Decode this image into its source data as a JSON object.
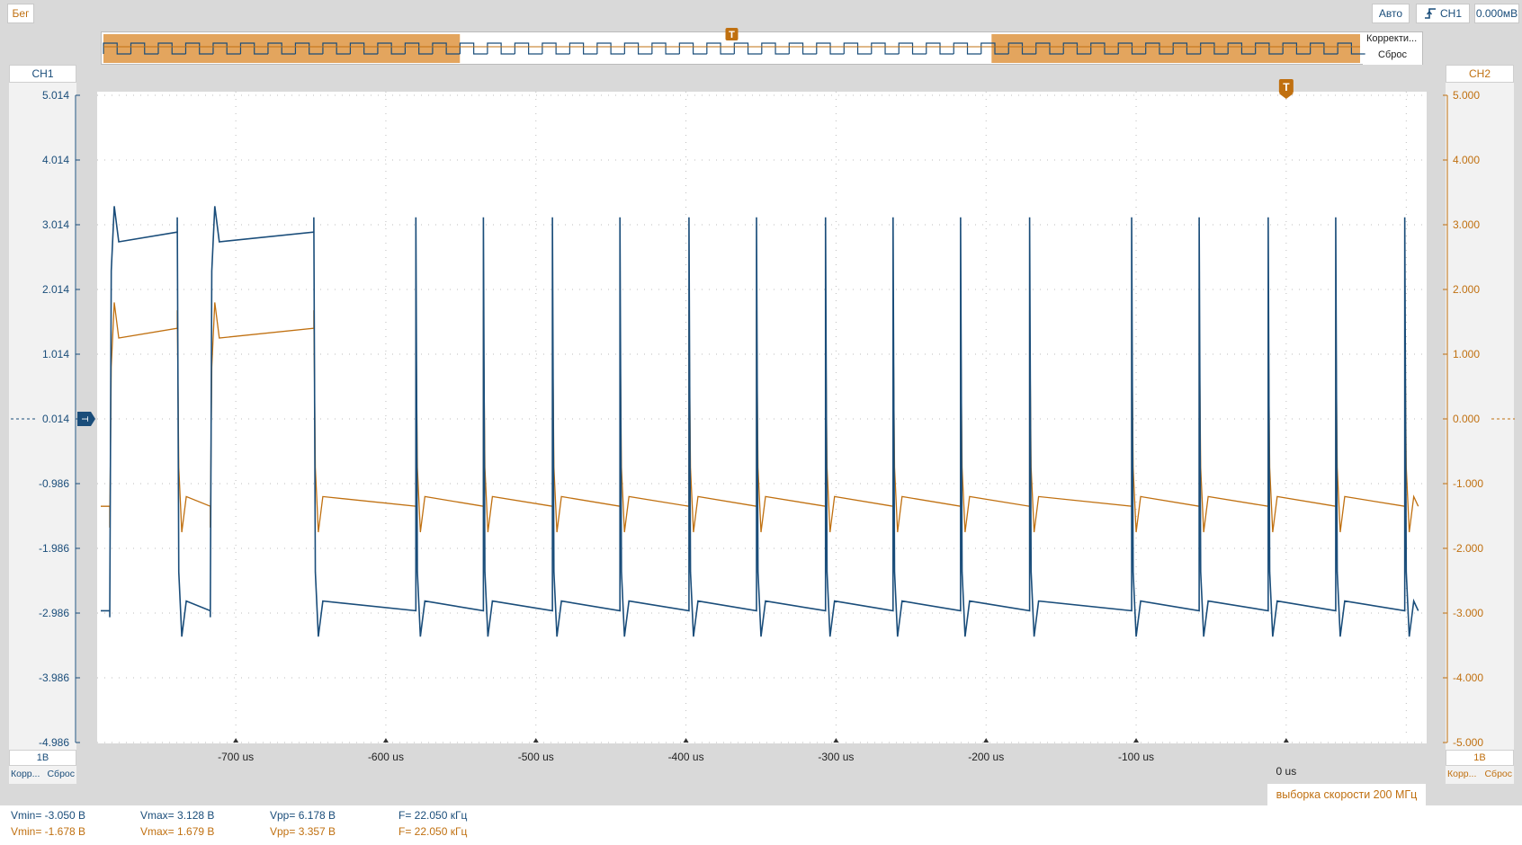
{
  "toolbar": {
    "run_label": "Бег",
    "auto_label": "Авто",
    "trigger_source_label": "CH1",
    "trigger_level_label": "0.000мВ"
  },
  "overview": {
    "correct_label": "Корректи...",
    "reset_label": "Сброс",
    "trigger_marker": "T"
  },
  "ch1_panel": {
    "title": "CH1",
    "scale": "1В",
    "correct_label": "Корр...",
    "reset_label": "Сброс",
    "color": "#1a4d7a"
  },
  "ch2_panel": {
    "title": "CH2",
    "scale": "1В",
    "correct_label": "Корр...",
    "reset_label": "Сброс",
    "color": "#c07010"
  },
  "sample_rate_label": "выборка скорости 200 МГц",
  "measurements": {
    "ch1": {
      "vmin": "Vmin= -3.050 В",
      "vmax": "Vmax= 3.128 В",
      "vpp": "Vpp= 6.178 В",
      "freq": "F= 22.050 кГц"
    },
    "ch2": {
      "vmin": "Vmin= -1.678 В",
      "vmax": "Vmax= 1.679 В",
      "vpp": "Vpp= 3.357 В",
      "freq": "F= 22.050 кГц"
    }
  },
  "chart_data": {
    "type": "line",
    "title": "",
    "xlabel": "",
    "ylabel": "",
    "x_unit": "us",
    "xlim": [
      -790,
      90
    ],
    "x_ticks": [
      -700,
      -600,
      -500,
      -400,
      -300,
      -200,
      -100,
      0
    ],
    "x_tick_labels": [
      "-700 us",
      "-600 us",
      "-500 us",
      "-400 us",
      "-300 us",
      "-200 us",
      "-100 us",
      "0 us"
    ],
    "trigger_time": 0,
    "grid": true,
    "y_axes": [
      {
        "channel": "CH1",
        "side": "left",
        "ylim": [
          -4.986,
          5.014
        ],
        "ticks": [
          5.014,
          4.014,
          3.014,
          2.014,
          1.014,
          0.014,
          -0.986,
          -1.986,
          -2.986,
          -3.986,
          -4.986
        ],
        "tick_labels": [
          "5.014",
          "4.014",
          "3.014",
          "2.014",
          "1.014",
          "0.014",
          "-0.986",
          "-1.986",
          "-2.986",
          "-3.986",
          "-4.986"
        ],
        "marker_level": 0.014
      },
      {
        "channel": "CH2",
        "side": "right",
        "ylim": [
          -5.0,
          5.0
        ],
        "ticks": [
          5.0,
          4.0,
          3.0,
          2.0,
          1.0,
          0.0,
          -1.0,
          -2.0,
          -3.0,
          -4.0,
          -5.0
        ],
        "tick_labels": [
          "5.000",
          "4.000",
          "3.000",
          "2.000",
          "1.000",
          "0.000",
          "-1.000",
          "-2.000",
          "-3.000",
          "-4.000",
          "-5.000"
        ],
        "marker_level": 0.0
      }
    ],
    "series": [
      {
        "name": "CH1",
        "color": "#1a4d7a",
        "high": 2.9,
        "low": -2.95,
        "overshoot_high": 3.128,
        "overshoot_low": -3.05
      },
      {
        "name": "CH2",
        "color": "#c07010",
        "high": 1.4,
        "low": -1.35,
        "overshoot_high": 1.679,
        "overshoot_low": -1.678
      }
    ],
    "transitions_us": [
      -784,
      -739,
      -717,
      -648,
      -649,
      -580,
      -580,
      -535,
      -534,
      -489,
      -489,
      -444,
      -443,
      -398,
      -398,
      -353,
      -352,
      -307,
      -307,
      -262,
      -262,
      -217,
      -216,
      -171,
      -171,
      -103,
      -103,
      -58,
      -58,
      -12,
      -12,
      33,
      33,
      79
    ],
    "transition_states": [
      "up",
      "down",
      "up",
      "down",
      "up",
      "down",
      "up",
      "down",
      "up",
      "down",
      "up",
      "down",
      "up",
      "down",
      "up",
      "down",
      "up",
      "down",
      "up",
      "down",
      "up",
      "down",
      "up",
      "down",
      "up",
      "down",
      "up",
      "down",
      "up",
      "down",
      "up",
      "down",
      "up",
      "down"
    ],
    "trace_x_range_us": [
      -790,
      88
    ]
  }
}
